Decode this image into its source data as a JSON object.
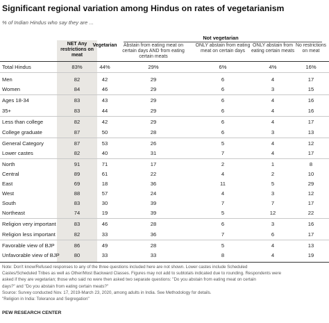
{
  "title": "Significant regional variation among Hindus on rates of vegetarianism",
  "subtitle": "% of Indian Hindus who say they are ...",
  "group_header": "Not vegetarian",
  "columns": [
    {
      "label": "NET Any restrictions on meat",
      "bold": true
    },
    {
      "label": "Vegetarian",
      "bold": true
    },
    {
      "label": "Abstain from eating meat on certain days AND from eating certain meats",
      "bold": false
    },
    {
      "label": "ONLY abstain from eating meat on certain days",
      "bold": false
    },
    {
      "label": "ONLY abstain from eating certain meats",
      "bold": false
    },
    {
      "label": "No restrictions on meat",
      "bold": false
    }
  ],
  "chart_data": {
    "type": "table",
    "title": "Significant regional variation among Hindus on rates of vegetarianism",
    "subtitle": "% of Indian Hindus who say they are ...",
    "rows": [
      {
        "label": "Total Hindus",
        "values": [
          "83%",
          "44%",
          "29%",
          "6%",
          "4%",
          "16%"
        ]
      },
      {
        "label": "Men",
        "values": [
          "82",
          "42",
          "29",
          "6",
          "4",
          "17"
        ]
      },
      {
        "label": "Women",
        "values": [
          "84",
          "46",
          "29",
          "6",
          "3",
          "15"
        ]
      },
      {
        "label": "Ages 18-34",
        "values": [
          "83",
          "43",
          "29",
          "6",
          "4",
          "16"
        ]
      },
      {
        "label": "35+",
        "values": [
          "83",
          "44",
          "29",
          "6",
          "4",
          "16"
        ]
      },
      {
        "label": "Less than college",
        "values": [
          "82",
          "42",
          "29",
          "6",
          "4",
          "17"
        ]
      },
      {
        "label": "College graduate",
        "values": [
          "87",
          "50",
          "28",
          "6",
          "3",
          "13"
        ]
      },
      {
        "label": "General Category",
        "values": [
          "87",
          "53",
          "26",
          "5",
          "4",
          "12"
        ]
      },
      {
        "label": "Lower castes",
        "values": [
          "82",
          "40",
          "31",
          "7",
          "4",
          "17"
        ]
      },
      {
        "label": "North",
        "values": [
          "91",
          "71",
          "17",
          "2",
          "1",
          "8"
        ]
      },
      {
        "label": "Central",
        "values": [
          "89",
          "61",
          "22",
          "4",
          "2",
          "10"
        ]
      },
      {
        "label": "East",
        "values": [
          "69",
          "18",
          "36",
          "11",
          "5",
          "29"
        ]
      },
      {
        "label": "West",
        "values": [
          "88",
          "57",
          "24",
          "4",
          "3",
          "12"
        ]
      },
      {
        "label": "South",
        "values": [
          "83",
          "30",
          "39",
          "7",
          "7",
          "17"
        ]
      },
      {
        "label": "Northeast",
        "values": [
          "74",
          "19",
          "39",
          "5",
          "12",
          "22"
        ]
      },
      {
        "label": "Religion very important",
        "values": [
          "83",
          "46",
          "28",
          "6",
          "3",
          "16"
        ]
      },
      {
        "label": "Religion less important",
        "values": [
          "82",
          "33",
          "36",
          "7",
          "6",
          "17"
        ]
      },
      {
        "label": "Favorable view of BJP",
        "values": [
          "86",
          "49",
          "28",
          "5",
          "4",
          "13"
        ]
      },
      {
        "label": "Unfavorable view of BJP",
        "values": [
          "80",
          "33",
          "33",
          "8",
          "4",
          "19"
        ]
      }
    ]
  },
  "notes": [
    "Note: Don't know/Refused responses to any of the three questions included here are not shown. Lower castes include Scheduled",
    "Castes/Scheduled Tribes as well as Other/Most Backward Classes. Figures may not add to subtotals indicated due to rounding. Respondents were",
    "asked if they are vegetarian; those who said no were then asked two separate questions: \"Do you abstain from eating meat on certain",
    "days?\" and \"Do you abstain from eating certain meats?\"",
    "Source: Survey conducted Nov. 17, 2019-March 23, 2020, among adults in India. See Methodology for details.",
    "\"Religion in India: Tolerance and Segregation\""
  ],
  "source_label": "PEW RESEARCH CENTER"
}
